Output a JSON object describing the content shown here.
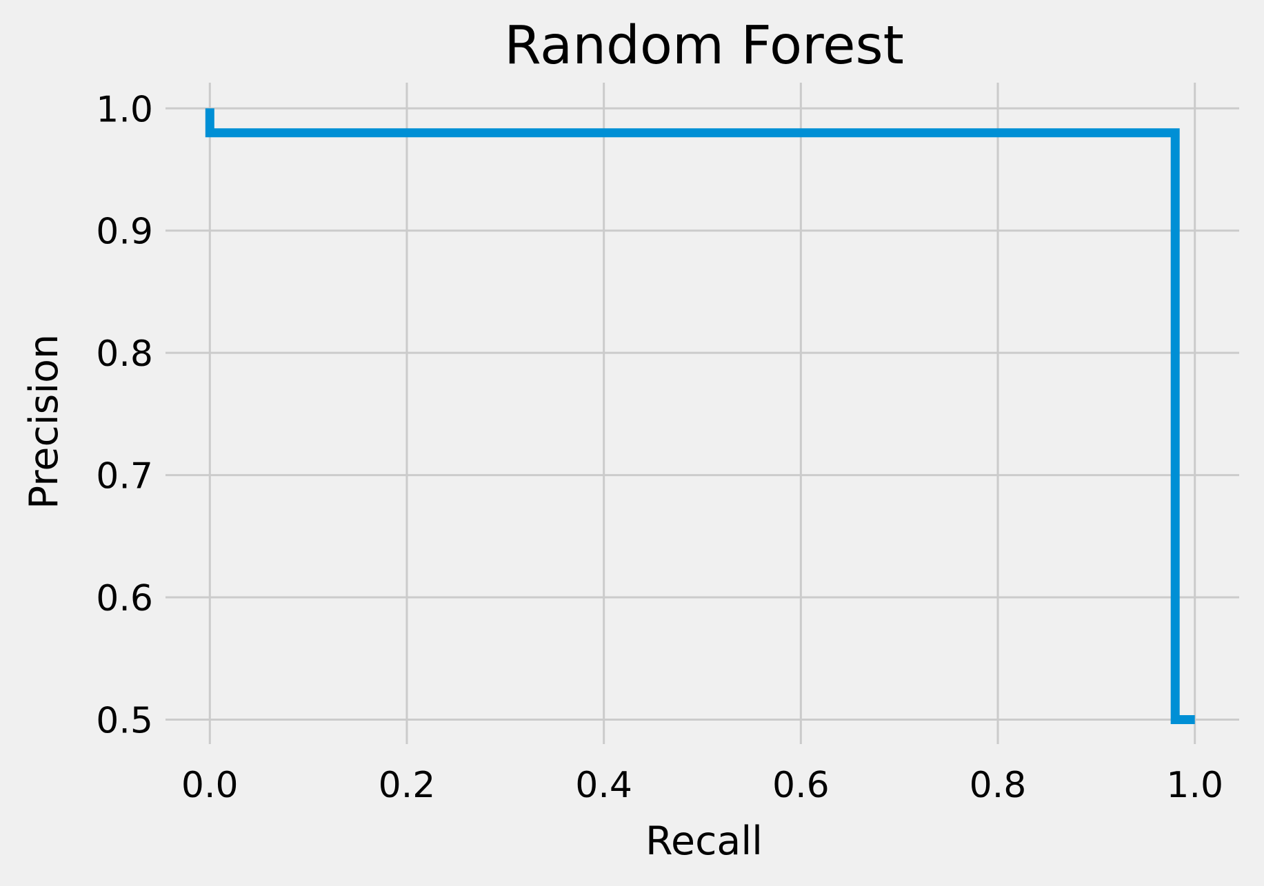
{
  "chart_data": {
    "type": "line",
    "title": "Random Forest",
    "xlabel": "Recall",
    "ylabel": "Precision",
    "xlim": [
      -0.045,
      1.045
    ],
    "ylim": [
      0.48,
      1.021
    ],
    "xticks": [
      0.0,
      0.2,
      0.4,
      0.6,
      0.8,
      1.0
    ],
    "xtick_labels": [
      "0.0",
      "0.2",
      "0.4",
      "0.6",
      "0.8",
      "1.0"
    ],
    "yticks": [
      0.5,
      0.6,
      0.7,
      0.8,
      0.9,
      1.0
    ],
    "ytick_labels": [
      "0.5",
      "0.6",
      "0.7",
      "0.8",
      "0.9",
      "1.0"
    ],
    "grid": true,
    "legend": false,
    "drawstyle": "step",
    "series": [
      {
        "color": "#008fd5",
        "x": [
          0.0,
          0.0,
          0.98,
          0.98,
          1.0
        ],
        "y": [
          1.0,
          0.98,
          0.98,
          0.5,
          0.5
        ]
      }
    ]
  }
}
